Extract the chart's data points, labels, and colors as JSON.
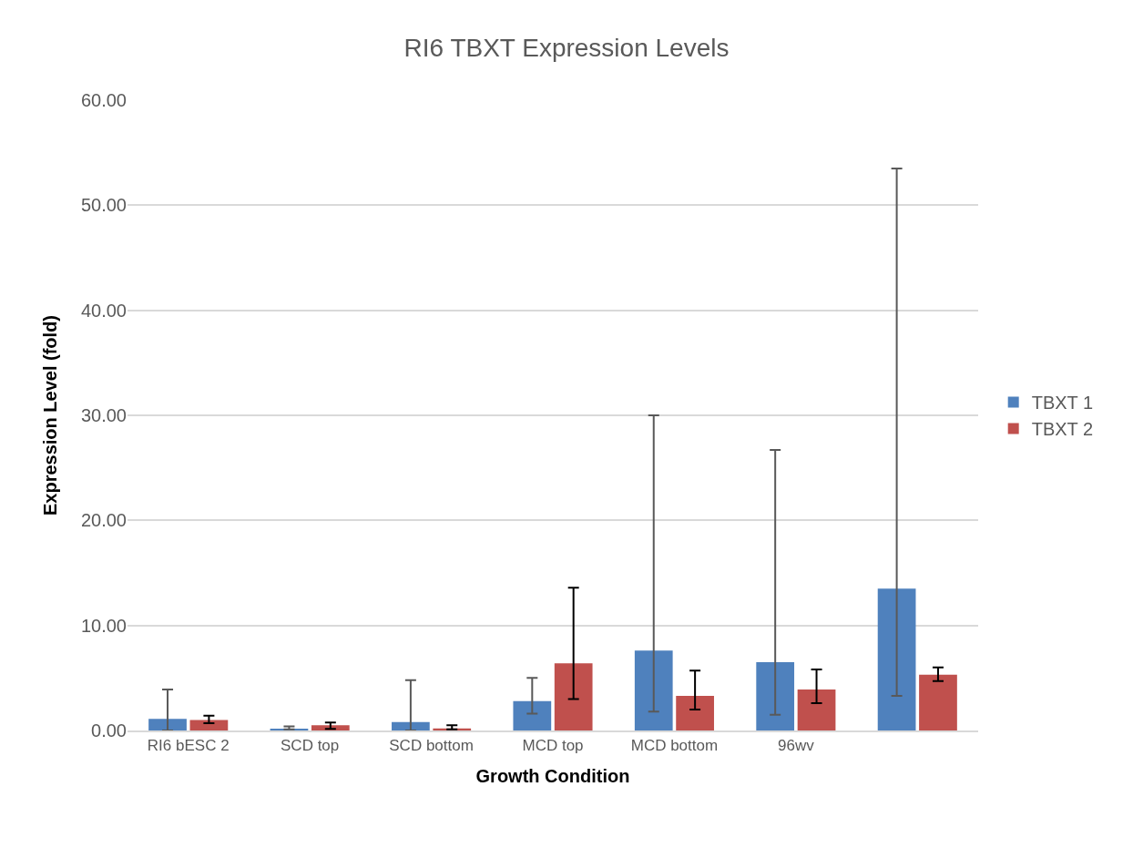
{
  "chart_data": {
    "type": "bar",
    "title": "RI6 TBXT Expression Levels",
    "xlabel": "Growth Condition",
    "ylabel": "Expression Level (fold)",
    "categories": [
      "RI6 bESC 2",
      "SCD top",
      "SCD bottom",
      "MCD top",
      "MCD bottom",
      "96wv",
      null
    ],
    "series": [
      {
        "name": "TBXT 1",
        "color": "#4f81bd",
        "values": [
          1.1,
          0.1,
          0.8,
          2.8,
          7.6,
          6.5,
          13.5
        ],
        "errors": [
          [
            0,
            3.9
          ],
          [
            0.1,
            0.4
          ],
          [
            0,
            4.8
          ],
          [
            1.6,
            5.0
          ],
          [
            1.8,
            30.0
          ],
          [
            1.5,
            26.7
          ],
          [
            3.3,
            53.5
          ]
        ]
      },
      {
        "name": "TBXT 2",
        "color": "#c0504d",
        "values": [
          1.0,
          0.5,
          0.2,
          6.4,
          3.3,
          3.9,
          5.3
        ],
        "errors": [
          [
            0.7,
            1.4
          ],
          [
            0.15,
            0.75
          ],
          [
            0.1,
            0.5
          ],
          [
            3.0,
            13.6
          ],
          [
            2.0,
            5.7
          ],
          [
            2.6,
            5.8
          ],
          [
            4.7,
            6.0
          ]
        ]
      }
    ],
    "ylim": [
      0,
      60
    ],
    "yticks": [
      {
        "value": 0,
        "label": "0.00"
      },
      {
        "value": 10,
        "label": "10.00"
      },
      {
        "value": 20,
        "label": "20.00"
      },
      {
        "value": 30,
        "label": "30.00"
      },
      {
        "value": 40,
        "label": "40.00"
      },
      {
        "value": 50,
        "label": "50.00"
      },
      {
        "value": 60,
        "label": "60.00"
      }
    ],
    "grid": "y",
    "legend": "right"
  }
}
